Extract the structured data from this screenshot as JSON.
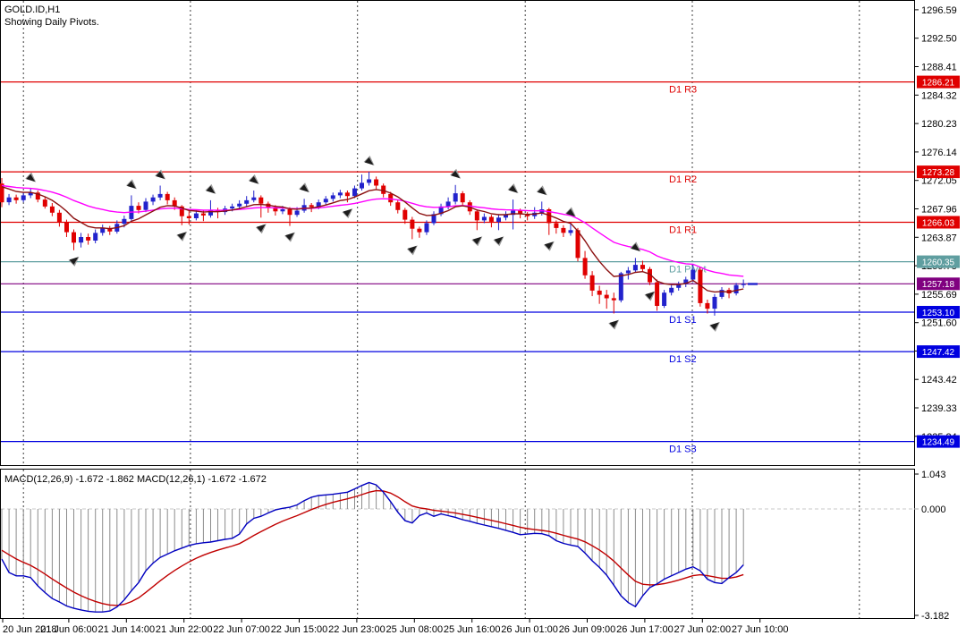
{
  "header": {
    "symbol_period": "GOLD.ID,H1",
    "note": "Showing Daily Pivots."
  },
  "chart_data": {
    "type": "candlestick",
    "title": "GOLD.ID,H1",
    "subtitle": "Showing Daily Pivots.",
    "price_axis": {
      "top_price": 1297.87,
      "bottom_price": 1231.1,
      "ticks": [
        "1296.59",
        "1292.50",
        "1288.41",
        "1284.32",
        "1280.23",
        "1276.14",
        "1272.05",
        "1267.96",
        "1263.87",
        "1259.78",
        "1255.69",
        "1251.60",
        "1247.51",
        "1243.42",
        "1239.33",
        "1235.24"
      ]
    },
    "time_axis": {
      "ticks": [
        {
          "label": "20 Jun 2018",
          "bar": 0.12,
          "align": "start"
        },
        {
          "label": "21 Jun 06:00",
          "bar": 9.3,
          "align": "middle"
        },
        {
          "label": "21 Jun 14:00",
          "bar": 17.3,
          "align": "middle"
        },
        {
          "label": "21 Jun 22:00",
          "bar": 25.3,
          "align": "middle"
        },
        {
          "label": "22 Jun 07:00",
          "bar": 33.3,
          "align": "middle"
        },
        {
          "label": "22 Jun 15:00",
          "bar": 41.3,
          "align": "middle"
        },
        {
          "label": "22 Jun 23:00",
          "bar": 49.3,
          "align": "middle"
        },
        {
          "label": "25 Jun 08:00",
          "bar": 57.3,
          "align": "middle"
        },
        {
          "label": "25 Jun 16:00",
          "bar": 65.3,
          "align": "middle"
        },
        {
          "label": "26 Jun 01:00",
          "bar": 73.3,
          "align": "middle"
        },
        {
          "label": "26 Jun 09:00",
          "bar": 81.3,
          "align": "middle"
        },
        {
          "label": "26 Jun 17:00",
          "bar": 89.3,
          "align": "middle"
        },
        {
          "label": "27 Jun 02:00",
          "bar": 97.3,
          "align": "middle"
        },
        {
          "label": "27 Jun 10:00",
          "bar": 105.3,
          "align": "middle"
        }
      ]
    },
    "day_separators_bar": [
      3,
      26.2,
      49.4,
      72.7,
      95.9,
      119.1
    ],
    "bull_color": "#2222cc",
    "bear_color": "#e00000",
    "candles": [
      [
        1271.6,
        1272.4,
        1268.2,
        1268.9
      ],
      [
        1268.9,
        1270.1,
        1268.5,
        1269.6
      ],
      [
        1269.6,
        1270.0,
        1268.7,
        1269.2
      ],
      [
        1269.2,
        1270.3,
        1268.9,
        1269.9
      ],
      [
        1269.9,
        1270.9,
        1269.5,
        1270.3
      ],
      [
        1270.3,
        1270.6,
        1268.9,
        1269.3
      ],
      [
        1269.3,
        1269.7,
        1268.0,
        1268.3
      ],
      [
        1268.3,
        1268.8,
        1266.9,
        1267.4
      ],
      [
        1267.4,
        1267.8,
        1265.4,
        1266.0
      ],
      [
        1266.0,
        1266.4,
        1263.9,
        1264.6
      ],
      [
        1264.6,
        1265.0,
        1262.0,
        1263.1
      ],
      [
        1263.1,
        1264.5,
        1262.4,
        1263.9
      ],
      [
        1263.9,
        1264.4,
        1262.8,
        1263.4
      ],
      [
        1263.4,
        1265.0,
        1263.0,
        1264.5
      ],
      [
        1264.5,
        1265.7,
        1264.1,
        1265.2
      ],
      [
        1265.2,
        1265.5,
        1264.2,
        1264.7
      ],
      [
        1264.7,
        1266.3,
        1264.4,
        1265.8
      ],
      [
        1265.8,
        1267.0,
        1265.3,
        1266.5
      ],
      [
        1266.5,
        1269.9,
        1266.2,
        1268.4
      ],
      [
        1268.4,
        1268.9,
        1267.3,
        1267.8
      ],
      [
        1267.8,
        1269.5,
        1267.5,
        1269.0
      ],
      [
        1269.0,
        1270.0,
        1268.5,
        1269.6
      ],
      [
        1269.6,
        1271.3,
        1269.2,
        1270.1
      ],
      [
        1270.1,
        1270.4,
        1268.6,
        1269.2
      ],
      [
        1269.2,
        1269.6,
        1267.8,
        1268.3
      ],
      [
        1268.3,
        1268.5,
        1265.6,
        1266.9
      ],
      [
        1266.9,
        1267.8,
        1265.7,
        1266.6
      ],
      [
        1266.6,
        1267.9,
        1266.3,
        1267.3
      ],
      [
        1267.3,
        1267.7,
        1266.2,
        1267.0
      ],
      [
        1267.0,
        1269.2,
        1266.7,
        1267.8
      ],
      [
        1267.8,
        1268.1,
        1266.6,
        1267.5
      ],
      [
        1267.5,
        1268.4,
        1267.1,
        1268.0
      ],
      [
        1268.0,
        1268.7,
        1267.6,
        1268.3
      ],
      [
        1268.3,
        1269.2,
        1268.0,
        1268.7
      ],
      [
        1268.7,
        1269.8,
        1268.3,
        1269.2
      ],
      [
        1269.2,
        1270.6,
        1268.9,
        1269.6
      ],
      [
        1269.6,
        1269.9,
        1266.7,
        1268.7
      ],
      [
        1268.7,
        1269.0,
        1267.4,
        1268.2
      ],
      [
        1268.2,
        1268.5,
        1267.0,
        1267.6
      ],
      [
        1267.6,
        1268.4,
        1267.2,
        1267.9
      ],
      [
        1267.9,
        1268.2,
        1265.5,
        1267.1
      ],
      [
        1267.1,
        1268.2,
        1266.8,
        1267.7
      ],
      [
        1267.7,
        1269.4,
        1267.4,
        1268.5
      ],
      [
        1268.5,
        1268.8,
        1267.5,
        1268.2
      ],
      [
        1268.2,
        1269.3,
        1267.9,
        1268.9
      ],
      [
        1268.9,
        1269.8,
        1268.5,
        1269.4
      ],
      [
        1269.4,
        1270.3,
        1269.0,
        1269.9
      ],
      [
        1269.9,
        1270.7,
        1269.5,
        1270.3
      ],
      [
        1270.3,
        1270.6,
        1268.9,
        1269.8
      ],
      [
        1269.8,
        1271.3,
        1269.5,
        1270.9
      ],
      [
        1270.9,
        1272.9,
        1270.6,
        1271.7
      ],
      [
        1271.7,
        1273.3,
        1271.3,
        1272.2
      ],
      [
        1272.2,
        1272.6,
        1270.8,
        1271.3
      ],
      [
        1271.3,
        1271.6,
        1269.6,
        1270.1
      ],
      [
        1270.1,
        1270.4,
        1268.4,
        1268.9
      ],
      [
        1268.9,
        1269.3,
        1267.3,
        1267.8
      ],
      [
        1267.8,
        1268.1,
        1265.8,
        1266.4
      ],
      [
        1266.4,
        1266.8,
        1263.6,
        1265.1
      ],
      [
        1265.1,
        1265.4,
        1263.8,
        1264.6
      ],
      [
        1264.6,
        1266.3,
        1264.2,
        1265.9
      ],
      [
        1265.9,
        1267.6,
        1265.6,
        1267.2
      ],
      [
        1267.2,
        1268.7,
        1266.9,
        1268.3
      ],
      [
        1268.3,
        1269.6,
        1267.9,
        1269.0
      ],
      [
        1269.0,
        1271.4,
        1268.6,
        1270.2
      ],
      [
        1270.2,
        1270.5,
        1268.4,
        1268.9
      ],
      [
        1268.9,
        1269.2,
        1267.1,
        1267.6
      ],
      [
        1267.6,
        1267.9,
        1264.9,
        1266.3
      ],
      [
        1266.3,
        1267.3,
        1265.9,
        1266.8
      ],
      [
        1266.8,
        1267.1,
        1265.3,
        1266.1
      ],
      [
        1266.1,
        1267.2,
        1264.9,
        1266.7
      ],
      [
        1266.7,
        1267.6,
        1266.3,
        1267.1
      ],
      [
        1267.1,
        1269.3,
        1265.0,
        1267.7
      ],
      [
        1267.7,
        1268.0,
        1266.6,
        1267.2
      ],
      [
        1267.2,
        1267.5,
        1266.3,
        1266.9
      ],
      [
        1266.9,
        1268.2,
        1266.5,
        1267.4
      ],
      [
        1267.4,
        1269.0,
        1267.0,
        1267.9
      ],
      [
        1267.9,
        1268.1,
        1264.2,
        1265.9
      ],
      [
        1265.9,
        1266.3,
        1264.4,
        1265.2
      ],
      [
        1265.2,
        1265.6,
        1263.9,
        1264.5
      ],
      [
        1264.5,
        1265.9,
        1264.1,
        1264.9
      ],
      [
        1264.9,
        1265.2,
        1260.4,
        1260.9
      ],
      [
        1260.9,
        1261.9,
        1257.9,
        1258.4
      ],
      [
        1258.4,
        1259.0,
        1255.4,
        1256.2
      ],
      [
        1256.2,
        1256.9,
        1254.3,
        1255.6
      ],
      [
        1255.6,
        1256.3,
        1253.6,
        1255.1
      ],
      [
        1255.1,
        1255.9,
        1252.9,
        1254.8
      ],
      [
        1254.8,
        1258.9,
        1254.5,
        1258.7
      ],
      [
        1258.7,
        1259.6,
        1257.8,
        1259.1
      ],
      [
        1259.1,
        1260.9,
        1258.8,
        1259.9
      ],
      [
        1259.9,
        1260.5,
        1258.9,
        1259.3
      ],
      [
        1259.3,
        1259.6,
        1257.0,
        1257.4
      ],
      [
        1257.4,
        1257.8,
        1253.3,
        1254.0
      ],
      [
        1254.0,
        1256.3,
        1253.7,
        1255.9
      ],
      [
        1255.9,
        1257.0,
        1255.5,
        1256.6
      ],
      [
        1256.6,
        1257.5,
        1256.2,
        1257.1
      ],
      [
        1257.1,
        1258.2,
        1256.7,
        1257.8
      ],
      [
        1257.8,
        1260.0,
        1257.4,
        1259.2
      ],
      [
        1259.2,
        1259.6,
        1253.9,
        1254.4
      ],
      [
        1254.4,
        1254.9,
        1252.9,
        1253.6
      ],
      [
        1253.6,
        1255.7,
        1252.6,
        1255.3
      ],
      [
        1255.3,
        1256.7,
        1255.0,
        1256.3
      ],
      [
        1256.3,
        1256.6,
        1255.1,
        1255.8
      ],
      [
        1255.8,
        1257.3,
        1255.5,
        1257.0
      ],
      [
        1257.0,
        1257.8,
        1256.6,
        1257.18
      ]
    ],
    "overlays": [
      {
        "name": "ma-slow",
        "type": "ema",
        "period": 26,
        "seed": 1271.5,
        "color": "#ff00ff"
      },
      {
        "name": "ma-fast",
        "type": "ema",
        "period": 8,
        "seed": 1271.8,
        "color": "#8b1010"
      }
    ],
    "pivot_levels": [
      {
        "label": "D1  R3",
        "value": 1286.21,
        "color": "#e00000",
        "badge": "1286.21"
      },
      {
        "label": "D1  R2",
        "value": 1273.28,
        "color": "#e00000",
        "badge": "1273.28"
      },
      {
        "label": "D1  R1",
        "value": 1266.03,
        "color": "#e00000",
        "badge": "1266.03"
      },
      {
        "label": "D1  Pivot",
        "value": 1260.35,
        "color": "#5f9ea0",
        "badge": "1260.35"
      },
      {
        "label": "",
        "value": 1257.18,
        "color": "#800080",
        "badge": "1257.18"
      },
      {
        "label": "D1  S1",
        "value": 1253.1,
        "color": "#0000e0",
        "badge": "1253.10"
      },
      {
        "label": "D1  S2",
        "value": 1247.42,
        "color": "#0000e0",
        "badge": "1247.42"
      },
      {
        "label": "D1  S3",
        "value": 1234.49,
        "color": "#0000e0",
        "badge": "1234.49"
      }
    ],
    "current_price": {
      "value": 1257.18,
      "color": "#2222cc"
    },
    "fractals": {
      "up": [
        4,
        18,
        22,
        29,
        35,
        42,
        51,
        63,
        71,
        75,
        79,
        88
      ],
      "down": [
        10,
        25,
        36,
        40,
        48,
        57,
        66,
        69,
        76,
        85,
        90,
        99
      ]
    },
    "macd": {
      "label": "MACD(12,26,9) -1.672 -1.862 MACD(12,26,1) -1.672 -1.672",
      "ylim": [
        -3.182,
        1.167
      ],
      "scale_ticks": [
        "1.043",
        "0.000",
        "-3.182"
      ],
      "signal_period": 9,
      "signal_seed": -1.17,
      "colors": {
        "histogram": "#8c8c8c",
        "main": "#0000c0",
        "signal": "#c00000",
        "zero_line": "#c8c8c8"
      },
      "values": [
        -1.5,
        -1.9,
        -2.0,
        -2.0,
        -2.05,
        -2.3,
        -2.5,
        -2.68,
        -2.78,
        -2.9,
        -2.97,
        -3.02,
        -3.06,
        -3.08,
        -3.08,
        -3.05,
        -2.93,
        -2.72,
        -2.45,
        -2.2,
        -1.85,
        -1.62,
        -1.45,
        -1.35,
        -1.25,
        -1.17,
        -1.09,
        -1.04,
        -1.01,
        -0.99,
        -0.95,
        -0.91,
        -0.88,
        -0.75,
        -0.45,
        -0.28,
        -0.22,
        -0.12,
        -0.03,
        0.02,
        0.05,
        0.12,
        0.25,
        0.35,
        0.4,
        0.42,
        0.44,
        0.47,
        0.5,
        0.6,
        0.7,
        0.79,
        0.72,
        0.5,
        0.22,
        -0.1,
        -0.35,
        -0.42,
        -0.2,
        -0.12,
        -0.22,
        -0.15,
        -0.2,
        -0.25,
        -0.32,
        -0.37,
        -0.43,
        -0.48,
        -0.53,
        -0.58,
        -0.64,
        -0.7,
        -0.77,
        -0.75,
        -0.73,
        -0.74,
        -0.8,
        -0.95,
        -1.03,
        -1.08,
        -1.12,
        -1.32,
        -1.55,
        -1.75,
        -1.98,
        -2.28,
        -2.6,
        -2.8,
        -2.92,
        -2.6,
        -2.35,
        -2.24,
        -2.1,
        -2.0,
        -1.9,
        -1.8,
        -1.73,
        -1.85,
        -2.1,
        -2.2,
        -2.23,
        -2.05,
        -1.9,
        -1.672
      ]
    }
  }
}
